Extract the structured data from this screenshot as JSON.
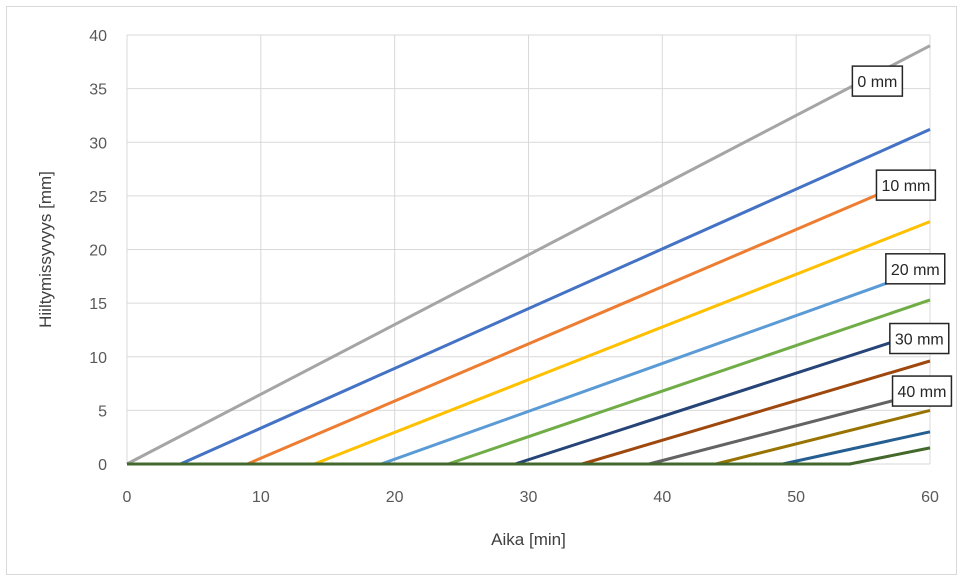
{
  "chart_data": {
    "type": "line",
    "title": "",
    "xlabel": "Aika [min]",
    "ylabel": "Hiiltymissyvyys [mm]",
    "xlim": [
      0,
      60
    ],
    "ylim": [
      0,
      40
    ],
    "xticks": [
      0,
      10,
      20,
      30,
      40,
      50,
      60
    ],
    "yticks": [
      0,
      5,
      10,
      15,
      20,
      25,
      30,
      35,
      40
    ],
    "grid": true,
    "legend": "none",
    "series": [
      {
        "color": "#a5a5a5",
        "points": [
          [
            0,
            0
          ],
          [
            60,
            39
          ]
        ]
      },
      {
        "color": "#4472c4",
        "points": [
          [
            0,
            0
          ],
          [
            4,
            0
          ],
          [
            60,
            31.2
          ]
        ]
      },
      {
        "color": "#ed7d31",
        "points": [
          [
            0,
            0
          ],
          [
            9,
            0
          ],
          [
            60,
            27.2
          ]
        ]
      },
      {
        "color": "#ffc000",
        "points": [
          [
            0,
            0
          ],
          [
            14,
            0
          ],
          [
            60,
            22.6
          ]
        ]
      },
      {
        "color": "#5b9bd5",
        "points": [
          [
            0,
            0
          ],
          [
            19,
            0
          ],
          [
            60,
            18.3
          ]
        ]
      },
      {
        "color": "#70ad47",
        "points": [
          [
            0,
            0
          ],
          [
            24,
            0
          ],
          [
            60,
            15.3
          ]
        ]
      },
      {
        "color": "#264478",
        "points": [
          [
            0,
            0
          ],
          [
            29,
            0
          ],
          [
            60,
            12.5
          ]
        ]
      },
      {
        "color": "#9e480e",
        "points": [
          [
            0,
            0
          ],
          [
            34,
            0
          ],
          [
            60,
            9.6
          ]
        ]
      },
      {
        "color": "#636363",
        "points": [
          [
            0,
            0
          ],
          [
            39,
            0
          ],
          [
            60,
            6.8
          ]
        ]
      },
      {
        "color": "#997300",
        "points": [
          [
            0,
            0
          ],
          [
            44,
            0
          ],
          [
            60,
            5.0
          ]
        ]
      },
      {
        "color": "#255e91",
        "points": [
          [
            0,
            0
          ],
          [
            49,
            0
          ],
          [
            60,
            3.0
          ]
        ]
      },
      {
        "color": "#43682b",
        "points": [
          [
            0,
            0
          ],
          [
            54,
            0
          ],
          [
            60,
            1.5
          ]
        ]
      }
    ],
    "annotations": [
      {
        "text": "0 mm",
        "x": 54.2,
        "y": 35.7
      },
      {
        "text": "10 mm",
        "x": 56.0,
        "y": 26.0
      },
      {
        "text": "20 mm",
        "x": 56.7,
        "y": 18.2
      },
      {
        "text": "30 mm",
        "x": 57.0,
        "y": 11.7
      },
      {
        "text": "40 mm",
        "x": 57.2,
        "y": 6.8
      }
    ]
  }
}
